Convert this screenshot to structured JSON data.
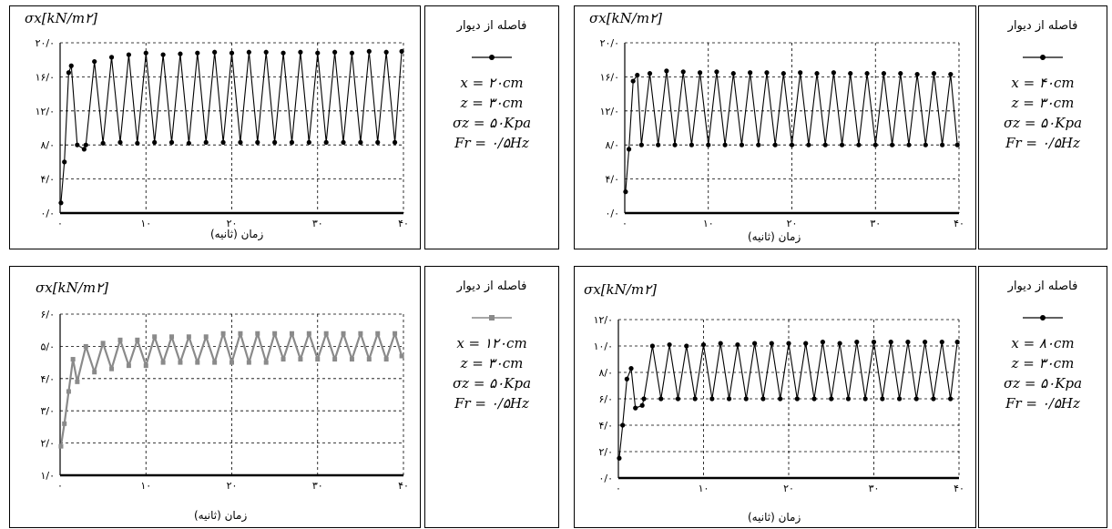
{
  "chart_data": [
    {
      "type": "line",
      "ylabel": "σx[kN/m۲]",
      "xlabel": "زمان (ثانیه)",
      "xlim": [
        0,
        40
      ],
      "ylim": [
        0,
        20
      ],
      "x_ticks": [
        0,
        10,
        20,
        30,
        40
      ],
      "x_tick_labels": [
        "۰",
        "۱۰",
        "۲۰",
        "۳۰",
        "۴۰"
      ],
      "y_ticks": [
        0,
        4,
        8,
        12,
        16,
        20
      ],
      "y_tick_labels": [
        "۰/۰",
        "۴/۰",
        "۸/۰",
        "۱۲/۰",
        "۱۶/۰",
        "۲۰/۰"
      ],
      "grid": true,
      "legend": {
        "title": "فاصله از دیوار",
        "params": [
          "x = ۲۰cm",
          "z = ۳۰cm",
          "σz = ۵۰Kpa",
          "Fr = ۰/۵Hz"
        ]
      },
      "series": [
        {
          "marker": "dot",
          "color": "#000000",
          "x": [
            0.1,
            0.5,
            1.0,
            1.3,
            2.0,
            2.8,
            3.0,
            4.0,
            5.0,
            6.0,
            7.0,
            8.0,
            9.0,
            10.0,
            11.0,
            12.0,
            13.0,
            14.0,
            15.0,
            16.0,
            17.0,
            18.0,
            19.0,
            20.0,
            21.0,
            22.0,
            23.0,
            24.0,
            25.0,
            26.0,
            27.0,
            28.0,
            29.0,
            30.0,
            31.0,
            32.0,
            33.0,
            34.0,
            35.0,
            36.0,
            37.0,
            38.0,
            39.0,
            39.8
          ],
          "y": [
            1.2,
            6.0,
            16.5,
            17.3,
            8.0,
            7.5,
            8.0,
            17.8,
            8.2,
            18.3,
            8.3,
            18.6,
            8.2,
            18.8,
            8.3,
            18.6,
            8.3,
            18.7,
            8.2,
            18.8,
            8.3,
            18.9,
            8.3,
            18.8,
            8.3,
            18.9,
            8.3,
            18.9,
            8.3,
            18.8,
            8.3,
            18.9,
            8.3,
            18.8,
            8.3,
            18.9,
            8.3,
            18.8,
            8.3,
            19.0,
            8.3,
            18.9,
            8.3,
            19.0
          ]
        }
      ]
    },
    {
      "type": "line",
      "ylabel": "σx[kN/m۲]",
      "xlabel": "زمان (ثانیه)",
      "xlim": [
        0,
        40
      ],
      "ylim": [
        0,
        20
      ],
      "x_ticks": [
        0,
        10,
        20,
        30,
        40
      ],
      "x_tick_labels": [
        "۰",
        "۱۰",
        "۲۰",
        "۳۰",
        "۴۰"
      ],
      "y_ticks": [
        0,
        4,
        8,
        12,
        16,
        20
      ],
      "y_tick_labels": [
        "۰/۰",
        "۴/۰",
        "۸/۰",
        "۱۲/۰",
        "۱۶/۰",
        "۲۰/۰"
      ],
      "grid": true,
      "legend": {
        "title": "فاصله از دیوار",
        "params": [
          "x = ۴۰cm",
          "z = ۳۰cm",
          "σz = ۵۰Kpa",
          "Fr = ۰/۵Hz"
        ]
      },
      "series": [
        {
          "marker": "dot",
          "color": "#000000",
          "x": [
            0.1,
            0.5,
            1.0,
            1.5,
            2.0,
            3.0,
            4.0,
            5.0,
            6.0,
            7.0,
            8.0,
            9.0,
            10.0,
            11.0,
            12.0,
            13.0,
            14.0,
            15.0,
            16.0,
            17.0,
            18.0,
            19.0,
            20.0,
            21.0,
            22.0,
            23.0,
            24.0,
            25.0,
            26.0,
            27.0,
            28.0,
            29.0,
            30.0,
            31.0,
            32.0,
            33.0,
            34.0,
            35.0,
            36.0,
            37.0,
            38.0,
            39.0,
            39.8
          ],
          "y": [
            2.5,
            7.5,
            15.5,
            16.2,
            8.0,
            16.4,
            8.0,
            16.7,
            8.0,
            16.6,
            8.0,
            16.5,
            8.0,
            16.6,
            8.0,
            16.4,
            8.0,
            16.5,
            8.0,
            16.5,
            8.0,
            16.4,
            8.0,
            16.5,
            8.0,
            16.4,
            8.0,
            16.5,
            8.0,
            16.4,
            8.0,
            16.4,
            8.0,
            16.4,
            8.0,
            16.4,
            8.0,
            16.3,
            8.0,
            16.4,
            8.0,
            16.3,
            8.0
          ]
        }
      ]
    },
    {
      "type": "line",
      "ylabel": "σx[kN/m۲]",
      "xlabel": "زمان (ثانیه)",
      "xlim": [
        0,
        40
      ],
      "ylim": [
        1,
        6
      ],
      "x_ticks": [
        0,
        10,
        20,
        30,
        40
      ],
      "x_tick_labels": [
        "۰",
        "۱۰",
        "۲۰",
        "۳۰",
        "۴۰"
      ],
      "y_ticks": [
        1,
        2,
        3,
        4,
        5,
        6
      ],
      "y_tick_labels": [
        "۱/۰",
        "۲/۰",
        "۳/۰",
        "۴/۰",
        "۵/۰",
        "۶/۰"
      ],
      "grid": true,
      "legend": {
        "title": "فاصله از دیوار",
        "params": [
          "x = ۱۲۰cm",
          "z = ۳۰cm",
          "σz = ۵۰Kpa",
          "Fr = ۰/۵Hz"
        ]
      },
      "series": [
        {
          "marker": "hatched",
          "color": "#8a8a8a",
          "x": [
            0.1,
            0.5,
            1.0,
            1.5,
            2.0,
            3.0,
            4.0,
            5.0,
            6.0,
            7.0,
            8.0,
            9.0,
            10.0,
            11.0,
            12.0,
            13.0,
            14.0,
            15.0,
            16.0,
            17.0,
            18.0,
            19.0,
            20.0,
            21.0,
            22.0,
            23.0,
            24.0,
            25.0,
            26.0,
            27.0,
            28.0,
            29.0,
            30.0,
            31.0,
            32.0,
            33.0,
            34.0,
            35.0,
            36.0,
            37.0,
            38.0,
            39.0,
            39.8
          ],
          "y": [
            1.9,
            2.6,
            3.6,
            4.6,
            3.9,
            5.0,
            4.2,
            5.1,
            4.3,
            5.2,
            4.4,
            5.2,
            4.4,
            5.3,
            4.5,
            5.3,
            4.5,
            5.3,
            4.5,
            5.3,
            4.5,
            5.4,
            4.5,
            5.4,
            4.5,
            5.4,
            4.5,
            5.4,
            4.6,
            5.4,
            4.6,
            5.4,
            4.6,
            5.4,
            4.6,
            5.4,
            4.6,
            5.4,
            4.6,
            5.4,
            4.6,
            5.4,
            4.7
          ]
        }
      ]
    },
    {
      "type": "line",
      "ylabel": "σx[kN/m۲]",
      "xlabel": "زمان (ثانیه)",
      "xlim": [
        0,
        40
      ],
      "ylim": [
        0,
        12
      ],
      "x_ticks": [
        0,
        10,
        20,
        30,
        40
      ],
      "x_tick_labels": [
        "۰",
        "۱۰",
        "۲۰",
        "۳۰",
        "۴۰"
      ],
      "y_ticks": [
        0,
        2,
        4,
        6,
        8,
        10,
        12
      ],
      "y_tick_labels": [
        "۰/۰",
        "۲/۰",
        "۴/۰",
        "۶/۰",
        "۸/۰",
        "۱۰/۰",
        "۱۲/۰"
      ],
      "grid": true,
      "legend": {
        "title": "فاصله از دیوار",
        "params": [
          "x = ۸۰cm",
          "z = ۳۰cm",
          "σz = ۵۰Kpa",
          "Fr = ۰/۵Hz"
        ]
      },
      "series": [
        {
          "marker": "dot",
          "color": "#000000",
          "x": [
            0.1,
            0.5,
            1.0,
            1.5,
            2.0,
            2.8,
            3.0,
            4.0,
            5.0,
            6.0,
            7.0,
            8.0,
            9.0,
            10.0,
            11.0,
            12.0,
            13.0,
            14.0,
            15.0,
            16.0,
            17.0,
            18.0,
            19.0,
            20.0,
            21.0,
            22.0,
            23.0,
            24.0,
            25.0,
            26.0,
            27.0,
            28.0,
            29.0,
            30.0,
            31.0,
            32.0,
            33.0,
            34.0,
            35.0,
            36.0,
            37.0,
            38.0,
            39.0,
            39.8
          ],
          "y": [
            1.5,
            4.0,
            7.5,
            8.3,
            5.3,
            5.5,
            6.0,
            10.0,
            6.0,
            10.1,
            6.0,
            10.0,
            6.0,
            10.1,
            6.0,
            10.2,
            6.0,
            10.1,
            6.0,
            10.2,
            6.0,
            10.2,
            6.0,
            10.2,
            6.0,
            10.2,
            6.0,
            10.3,
            6.0,
            10.2,
            6.0,
            10.3,
            6.0,
            10.3,
            6.0,
            10.3,
            6.0,
            10.3,
            6.0,
            10.3,
            6.0,
            10.3,
            6.0,
            10.3
          ]
        }
      ]
    }
  ]
}
